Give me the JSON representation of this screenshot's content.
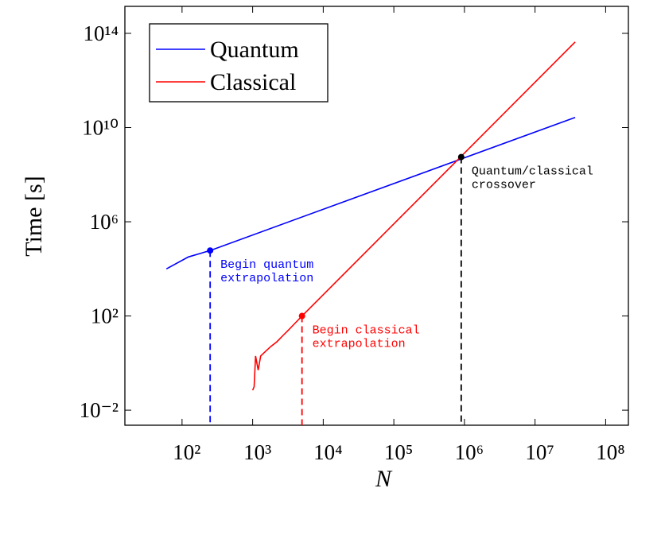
{
  "chart_data": {
    "type": "line",
    "x_label": "N",
    "y_label": "Time [s]",
    "log_x": true,
    "log_y": true,
    "xlim": [
      15.5,
      210000000
    ],
    "ylim": [
      0.0023,
      1400000000000000
    ],
    "xticks": [
      {
        "value": 100,
        "label": "10²"
      },
      {
        "value": 1000,
        "label": "10³"
      },
      {
        "value": 10000,
        "label": "10⁴"
      },
      {
        "value": 100000,
        "label": "10⁵"
      },
      {
        "value": 1000000,
        "label": "10⁶"
      },
      {
        "value": 10000000,
        "label": "10⁷"
      },
      {
        "value": 100000000,
        "label": "10⁸"
      }
    ],
    "yticks": [
      {
        "value": 0.01,
        "label": "10⁻²"
      },
      {
        "value": 100,
        "label": "10²"
      },
      {
        "value": 1000000,
        "label": "10⁶"
      },
      {
        "value": 10000000000,
        "label": "10¹⁰"
      },
      {
        "value": 100000000000000,
        "label": "10¹⁴"
      }
    ],
    "legend": "upper left",
    "series": [
      {
        "name": "Quantum",
        "color": "#0000ff",
        "x": [
          60,
          123,
          250,
          37000000
        ],
        "values": [
          10000,
          32000,
          60000,
          27000000000
        ]
      },
      {
        "name": "Classical",
        "color": "#ff0000",
        "x": [
          1000,
          1050,
          1100,
          1200,
          1300,
          1500,
          1800,
          2200,
          2700,
          3200,
          4000,
          5000,
          37000000
        ],
        "values": [
          0.07,
          0.1,
          2,
          0.5,
          2,
          3,
          5,
          8,
          15,
          25,
          50,
          100,
          43000000000000
        ]
      }
    ],
    "annotations": [
      {
        "text": [
          "Begin quantum",
          "extrapolation"
        ],
        "x": 250,
        "y": 60000,
        "color": "#0000ff"
      },
      {
        "text": [
          "Begin classical",
          "extrapolation"
        ],
        "x": 5000,
        "y": 100,
        "color": "#ff0000"
      },
      {
        "text": [
          "Quantum/classical",
          "crossover"
        ],
        "x": 900000,
        "y": 560000000,
        "color": "#000000"
      }
    ]
  }
}
